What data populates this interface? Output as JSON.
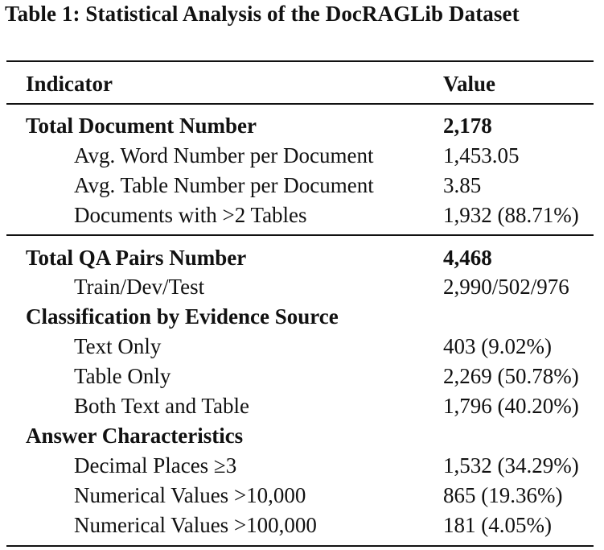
{
  "caption": "Table 1: Statistical Analysis of the DocRAGLib Dataset",
  "header": {
    "indicator": "Indicator",
    "value": "Value"
  },
  "rows": [
    {
      "indicator": "Total Document Number",
      "value": "2,178",
      "style": "bold"
    },
    {
      "indicator": "Avg. Word Number per Document",
      "value": "1,453.05",
      "style": "sub"
    },
    {
      "indicator": "Avg. Table Number per Document",
      "value": "3.85",
      "style": "sub"
    },
    {
      "indicator": "Documents with >2 Tables",
      "value": "1,932 (88.71%)",
      "style": "sub"
    },
    {
      "indicator": "Total QA Pairs Number",
      "value": "4,468",
      "style": "bold"
    },
    {
      "indicator": "Train/Dev/Test",
      "value": "2,990/502/976",
      "style": "sub"
    },
    {
      "indicator": "Classification by Evidence Source",
      "value": "",
      "style": "bold"
    },
    {
      "indicator": "Text Only",
      "value": "403 (9.02%)",
      "style": "sub"
    },
    {
      "indicator": "Table Only",
      "value": "2,269 (50.78%)",
      "style": "sub"
    },
    {
      "indicator": "Both Text and Table",
      "value": "1,796 (40.20%)",
      "style": "sub"
    },
    {
      "indicator": "Answer Characteristics",
      "value": "",
      "style": "bold"
    },
    {
      "indicator": "Decimal Places ≥3",
      "value": "1,532 (34.29%)",
      "style": "sub"
    },
    {
      "indicator": "Numerical Values >10,000",
      "value": "865 (19.36%)",
      "style": "sub"
    },
    {
      "indicator": "Numerical Values >100,000",
      "value": "181 (4.05%)",
      "style": "sub"
    }
  ]
}
